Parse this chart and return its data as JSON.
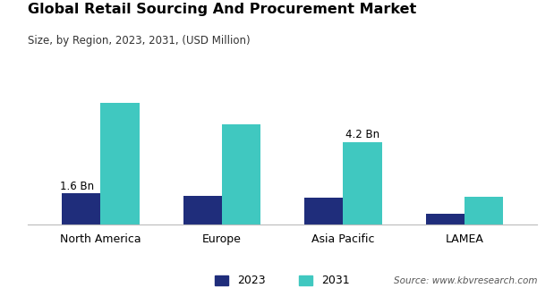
{
  "title": "Global Retail Sourcing And Procurement Market",
  "subtitle": "Size, by Region, 2023, 2031, (USD Million)",
  "source": "Source: www.kbvresearch.com",
  "categories": [
    "North America",
    "Europe",
    "Asia Pacific",
    "LAMEA"
  ],
  "values_2023": [
    1.6,
    1.45,
    1.35,
    0.55
  ],
  "values_2031": [
    6.2,
    5.1,
    4.2,
    1.4
  ],
  "color_2023": "#1f2d7b",
  "color_2031": "#40c8c0",
  "bar_width": 0.32,
  "label_2023_idx": 0,
  "label_2023_text": "1.6 Bn",
  "label_2031_idx": 2,
  "label_2031_text": "4.2 Bn",
  "legend_labels": [
    "2023",
    "2031"
  ],
  "background_color": "#ffffff",
  "title_fontsize": 11.5,
  "subtitle_fontsize": 8.5,
  "xtick_fontsize": 9,
  "legend_fontsize": 9,
  "source_fontsize": 7.5
}
